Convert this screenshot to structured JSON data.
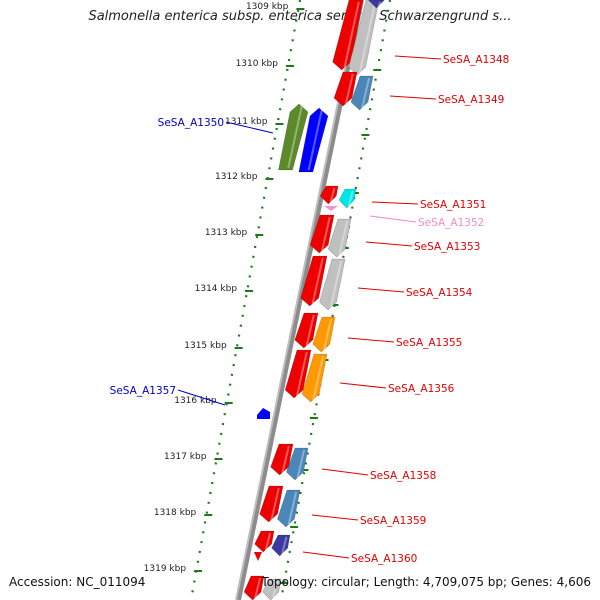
{
  "title": "Salmonella enterica subsp. enterica serovar Schwarzengrund s...",
  "footer": {
    "accession": "Accession: NC_011094",
    "summary": "Topology: circular; Length: 4,709,075 bp; Genes: 4,606"
  },
  "scale_labels": [
    "1309 kbp",
    "1310 kbp",
    "1311 kbp",
    "1312 kbp",
    "1313 kbp",
    "1314 kbp",
    "1315 kbp",
    "1316 kbp",
    "1317 kbp",
    "1318 kbp",
    "1319 kbp"
  ],
  "gene_labels": [
    {
      "id": "SeSA_A1348",
      "color": "#e00000"
    },
    {
      "id": "SeSA_A1349",
      "color": "#e00000"
    },
    {
      "id": "SeSA_A1350",
      "color": "#0000cc"
    },
    {
      "id": "SeSA_A1351",
      "color": "#e00000"
    },
    {
      "id": "SeSA_A1352",
      "color": "#f08cc8"
    },
    {
      "id": "SeSA_A1353",
      "color": "#e00000"
    },
    {
      "id": "SeSA_A1354",
      "color": "#e00000"
    },
    {
      "id": "SeSA_A1355",
      "color": "#e00000"
    },
    {
      "id": "SeSA_A1356",
      "color": "#e00000"
    },
    {
      "id": "SeSA_A1357",
      "color": "#0000cc"
    },
    {
      "id": "SeSA_A1358",
      "color": "#e00000"
    },
    {
      "id": "SeSA_A1359",
      "color": "#e00000"
    },
    {
      "id": "SeSA_A1360",
      "color": "#e00000"
    }
  ],
  "colors": {
    "backbone": "#8c8c8c",
    "ruler_tick": "#1a7a1a",
    "cds": "#ee0000",
    "trna_like": "#00e6e6",
    "orange_feature": "#ff9900",
    "grey_feature": "#c0c0c0",
    "steel_feature": "#4a86b8",
    "navy_feature": "#3a3aa0",
    "olive_feature": "#5a8a2a",
    "blue_feature": "#0000ff",
    "pink_feature": "#e896d8"
  }
}
